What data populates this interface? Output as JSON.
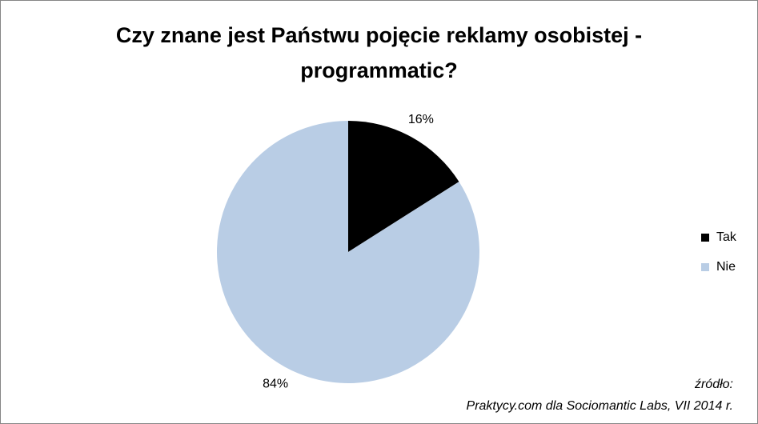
{
  "chart_data": {
    "type": "pie",
    "title": "Czy znane jest Państwu pojęcie reklamy osobistej - programmatic?",
    "categories": [
      "Tak",
      "Nie"
    ],
    "values": [
      16,
      84
    ],
    "value_labels": [
      "16%",
      "84%"
    ],
    "colors": [
      "#000000",
      "#b9cde5"
    ],
    "legend": "right",
    "annotations": [
      "źródło:",
      "Praktycy.com dla Sociomantic Labs, VII 2014 r."
    ]
  }
}
